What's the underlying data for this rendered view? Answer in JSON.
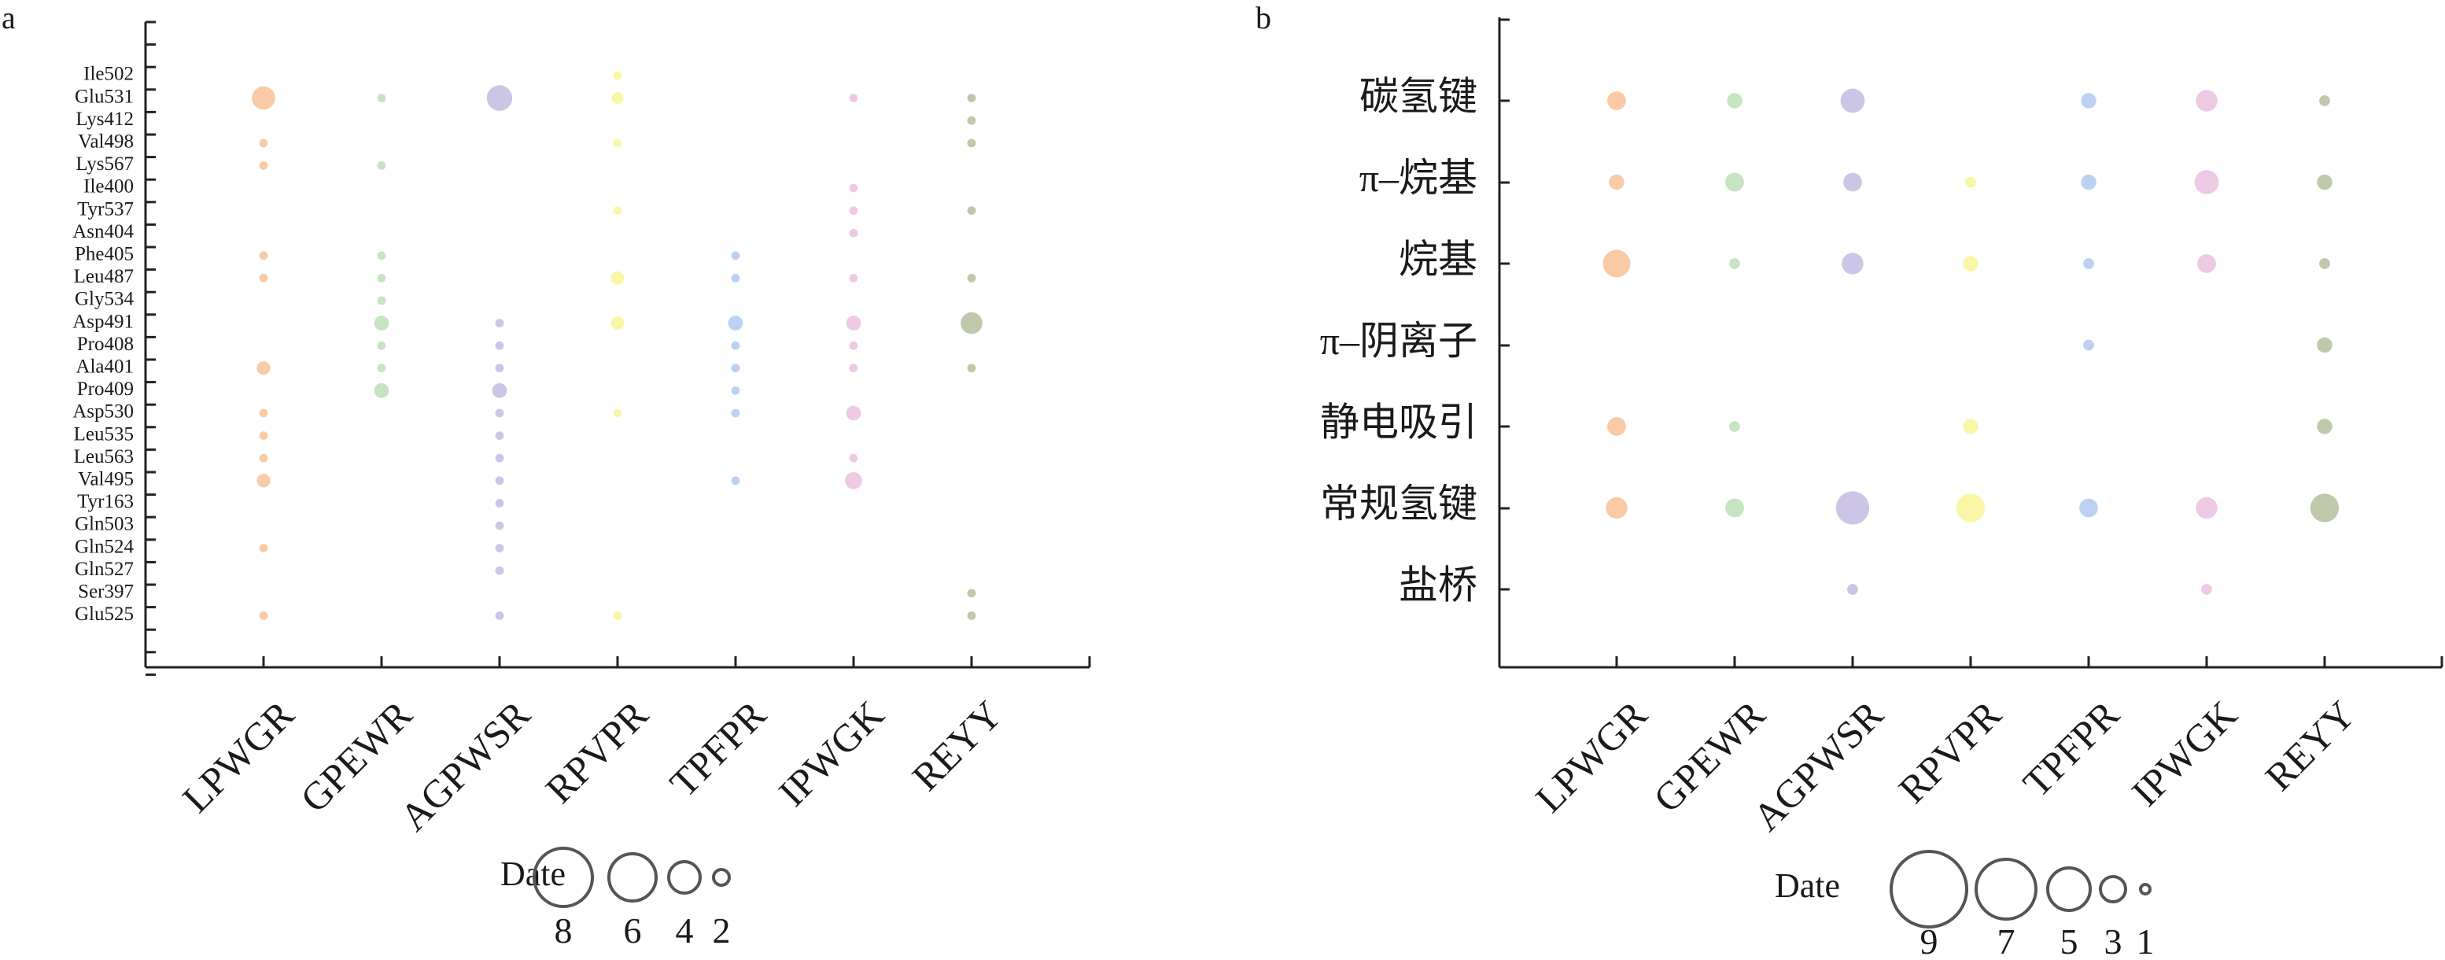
{
  "chart_data": [
    {
      "panel_label": "a",
      "type": "bubble",
      "categories_x": [
        "LPWGR",
        "GPEWR",
        "AGPWSR",
        "RPVPR",
        "TPFPR",
        "IPWGK",
        "REYY"
      ],
      "categories_y": [
        "Ile502",
        "Glu531",
        "Lys412",
        "Val498",
        "Lys567",
        "Ile400",
        "Tyr537",
        "Asn404",
        "Phe405",
        "Leu487",
        "Gly534",
        "Asp491",
        "Pro408",
        "Ala401",
        "Pro409",
        "Asp530",
        "Leu535",
        "Leu563",
        "Val495",
        "Tyr163",
        "Gln503",
        "Gln524",
        "Gln527",
        "Ser397",
        "Glu525"
      ],
      "series": [
        {
          "values": [
            [
              1,
              7.5
            ],
            [
              3,
              1
            ],
            [
              4,
              1
            ],
            [
              8,
              1
            ],
            [
              9,
              1
            ],
            [
              13,
              2.5
            ],
            [
              15,
              1
            ],
            [
              16,
              1
            ],
            [
              17,
              1
            ],
            [
              18,
              2.5
            ],
            [
              21,
              1
            ],
            [
              24,
              1
            ]
          ]
        },
        {
          "values": [
            [
              1,
              1
            ],
            [
              4,
              1
            ],
            [
              8,
              1
            ],
            [
              9,
              1
            ],
            [
              10,
              1
            ],
            [
              11,
              3
            ],
            [
              12,
              1
            ],
            [
              13,
              1
            ],
            [
              14,
              3
            ]
          ]
        },
        {
          "values": [
            [
              1,
              9
            ],
            [
              11,
              1
            ],
            [
              12,
              1
            ],
            [
              13,
              1
            ],
            [
              14,
              3
            ],
            [
              15,
              1
            ],
            [
              16,
              1
            ],
            [
              17,
              1
            ],
            [
              18,
              1
            ],
            [
              19,
              1
            ],
            [
              20,
              1
            ],
            [
              21,
              1
            ],
            [
              22,
              1
            ],
            [
              24,
              1
            ]
          ]
        },
        {
          "values": [
            [
              0,
              1
            ],
            [
              1,
              2
            ],
            [
              3,
              1
            ],
            [
              6,
              1
            ],
            [
              9,
              2.5
            ],
            [
              11,
              2.5
            ],
            [
              15,
              1
            ],
            [
              24,
              1
            ]
          ]
        },
        {
          "values": [
            [
              8,
              1
            ],
            [
              9,
              1
            ],
            [
              11,
              3
            ],
            [
              12,
              1
            ],
            [
              13,
              1
            ],
            [
              14,
              1
            ],
            [
              15,
              1
            ],
            [
              18,
              1
            ]
          ]
        },
        {
          "values": [
            [
              1,
              1
            ],
            [
              5,
              1
            ],
            [
              6,
              1
            ],
            [
              7,
              1
            ],
            [
              9,
              1
            ],
            [
              11,
              3
            ],
            [
              12,
              1
            ],
            [
              13,
              1
            ],
            [
              15,
              3
            ],
            [
              17,
              1
            ],
            [
              18,
              4
            ]
          ]
        },
        {
          "values": [
            [
              1,
              1
            ],
            [
              2,
              1
            ],
            [
              3,
              1
            ],
            [
              6,
              1
            ],
            [
              9,
              1
            ],
            [
              11,
              6.5
            ],
            [
              13,
              1
            ],
            [
              23,
              1
            ],
            [
              24,
              1
            ]
          ]
        }
      ],
      "legend_title": "Date",
      "legend_sizes": [
        8,
        6,
        4,
        2
      ]
    },
    {
      "panel_label": "b",
      "type": "bubble",
      "categories_x": [
        "LPWGR",
        "GPEWR",
        "AGPWSR",
        "RPVPR",
        "TPFPR",
        "IPWGK",
        "REYY"
      ],
      "categories_y": [
        "碳氢键",
        "π–烷基",
        "烷基",
        "π–阴离子",
        "静电吸引",
        "常规氢键",
        "盐桥"
      ],
      "series": [
        {
          "values": [
            [
              0,
              3
            ],
            [
              1,
              2
            ],
            [
              2,
              6.5
            ],
            [
              4,
              3
            ],
            [
              5,
              4
            ]
          ]
        },
        {
          "values": [
            [
              0,
              2
            ],
            [
              1,
              3
            ],
            [
              2,
              1
            ],
            [
              4,
              1
            ],
            [
              5,
              3
            ]
          ]
        },
        {
          "values": [
            [
              0,
              5
            ],
            [
              1,
              3
            ],
            [
              2,
              4
            ],
            [
              5,
              9.5
            ],
            [
              6,
              1
            ]
          ]
        },
        {
          "values": [
            [
              1,
              1
            ],
            [
              2,
              2
            ],
            [
              4,
              2
            ],
            [
              5,
              7
            ]
          ]
        },
        {
          "values": [
            [
              0,
              2
            ],
            [
              1,
              2
            ],
            [
              2,
              1
            ],
            [
              3,
              1
            ],
            [
              5,
              3
            ]
          ]
        },
        {
          "values": [
            [
              0,
              4
            ],
            [
              1,
              5
            ],
            [
              2,
              3
            ],
            [
              5,
              4
            ],
            [
              6,
              1
            ]
          ]
        },
        {
          "values": [
            [
              0,
              1
            ],
            [
              1,
              2
            ],
            [
              2,
              1
            ],
            [
              3,
              2
            ],
            [
              4,
              2
            ],
            [
              5,
              7
            ]
          ]
        }
      ],
      "legend_title": "Date",
      "legend_sizes": [
        9,
        7,
        5,
        3,
        1
      ]
    }
  ],
  "colors": [
    "#f9c7a0",
    "#c3e2bf",
    "#c9c2e4",
    "#f9f5a2",
    "#b8cff0",
    "#ecc6e3",
    "#bcc5a6"
  ]
}
